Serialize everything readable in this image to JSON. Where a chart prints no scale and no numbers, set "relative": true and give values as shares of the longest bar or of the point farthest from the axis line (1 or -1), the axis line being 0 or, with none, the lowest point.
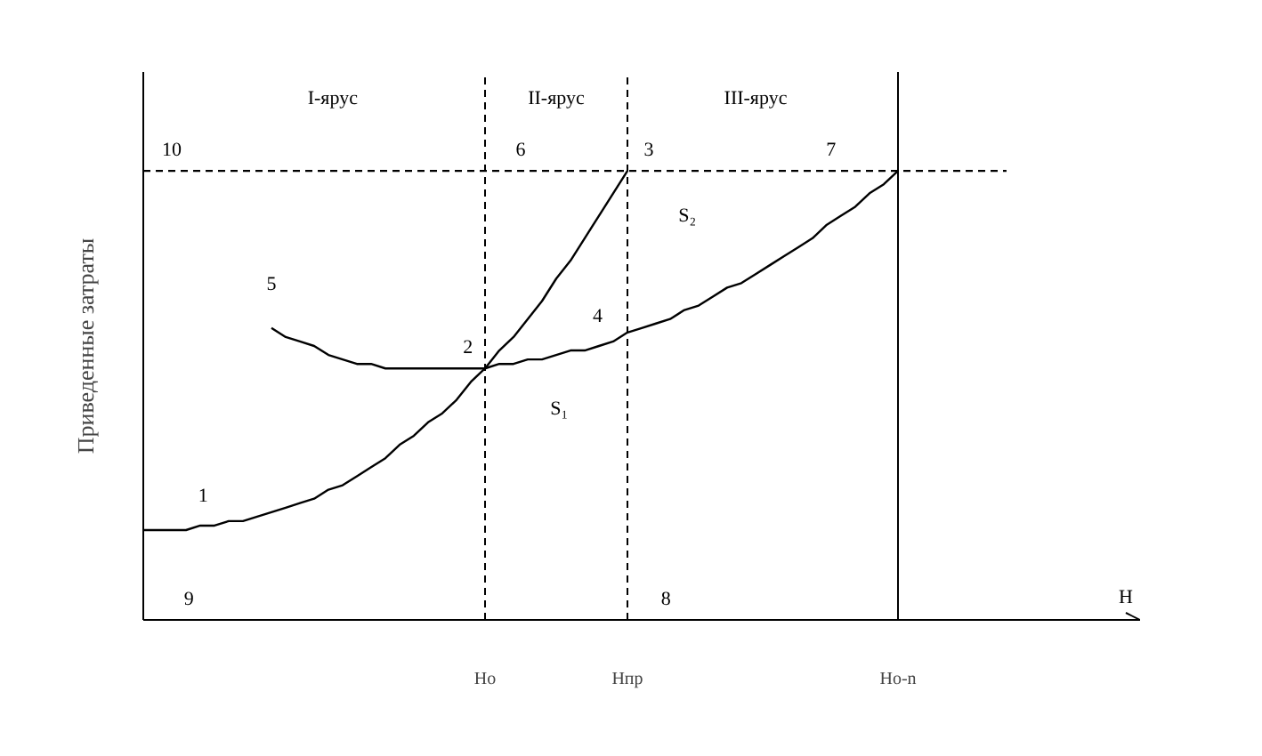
{
  "chart_data": {
    "type": "line",
    "relative": true,
    "xlabel": "H",
    "ylabel": "Приведенные затраты",
    "categories": [
      null,
      null,
      null,
      null,
      null,
      null,
      null,
      null,
      null,
      null,
      null,
      null,
      null,
      null,
      null,
      null,
      null,
      null,
      null,
      null,
      null,
      null,
      null,
      null,
      "Ho",
      null,
      null,
      null,
      null,
      null,
      null,
      null,
      null,
      null,
      "Hпр",
      null,
      null,
      null,
      null,
      null,
      null,
      null,
      null,
      null,
      null,
      null,
      null,
      null,
      null,
      null,
      null,
      null,
      null,
      "Ho-n",
      null,
      null,
      null,
      null,
      null,
      null,
      null,
      null,
      null,
      null,
      null,
      null,
      null,
      null,
      null,
      null,
      null
    ],
    "tick_labels": "x",
    "grid": false,
    "line_style": "solid",
    "marker": "none",
    "series": [
      {
        "color": "#000000",
        "values": [
          0.2,
          0.2,
          0.2,
          0.2,
          0.21,
          0.21,
          0.22,
          0.22,
          0.23,
          0.24,
          0.25,
          0.26,
          0.27,
          0.29,
          0.3,
          0.32,
          0.34,
          0.36,
          0.39,
          0.41,
          0.44,
          0.46,
          0.49,
          0.53,
          0.56,
          0.6,
          0.63,
          0.67,
          0.71,
          0.76,
          0.8,
          0.85,
          0.9,
          0.95,
          1.0,
          null,
          null,
          null,
          null,
          null,
          null,
          null,
          null,
          null,
          null,
          null,
          null,
          null,
          null,
          null,
          null,
          null,
          null,
          null,
          null,
          null,
          null,
          null,
          null,
          null,
          null,
          null,
          null,
          null,
          null,
          null,
          null,
          null,
          null,
          null,
          null
        ]
      },
      {
        "color": "#000000",
        "values": [
          null,
          null,
          null,
          null,
          null,
          null,
          null,
          null,
          null,
          0.65,
          0.63,
          0.62,
          0.61,
          0.59,
          0.58,
          0.57,
          0.57,
          0.56,
          0.56,
          0.56,
          0.56,
          0.56,
          0.56,
          0.56,
          0.56,
          0.57,
          0.57,
          0.58,
          0.58,
          0.59,
          0.6,
          0.6,
          0.61,
          0.62,
          0.64,
          0.65,
          0.66,
          0.67,
          0.69,
          0.7,
          0.72,
          0.74,
          0.75,
          0.77,
          0.79,
          0.81,
          0.83,
          0.85,
          0.88,
          0.9,
          0.92,
          0.95,
          0.97,
          1.0,
          null,
          null,
          null,
          null,
          null,
          null,
          null,
          null,
          null,
          null,
          null,
          null,
          null,
          null,
          null,
          null,
          null
        ]
      }
    ],
    "ref_lines": [
      {
        "axis": "x",
        "value": "Ho",
        "line_style": "dashed",
        "color": "#000000"
      },
      {
        "axis": "x",
        "value": "Hпр",
        "line_style": "dashed",
        "color": "#000000"
      },
      {
        "axis": "x",
        "value": "Ho-n",
        "line_style": "solid",
        "color": "#000000"
      },
      {
        "axis": "y",
        "value": 1.0,
        "line_style": "dashed",
        "color": "#000000"
      }
    ],
    "annotations": [
      "I-ярус",
      "II-ярус",
      "III-ярус",
      "10",
      "6",
      "3",
      "7",
      "5",
      "2",
      "4",
      "S₂",
      "S₁",
      "1",
      "9",
      "8"
    ]
  }
}
